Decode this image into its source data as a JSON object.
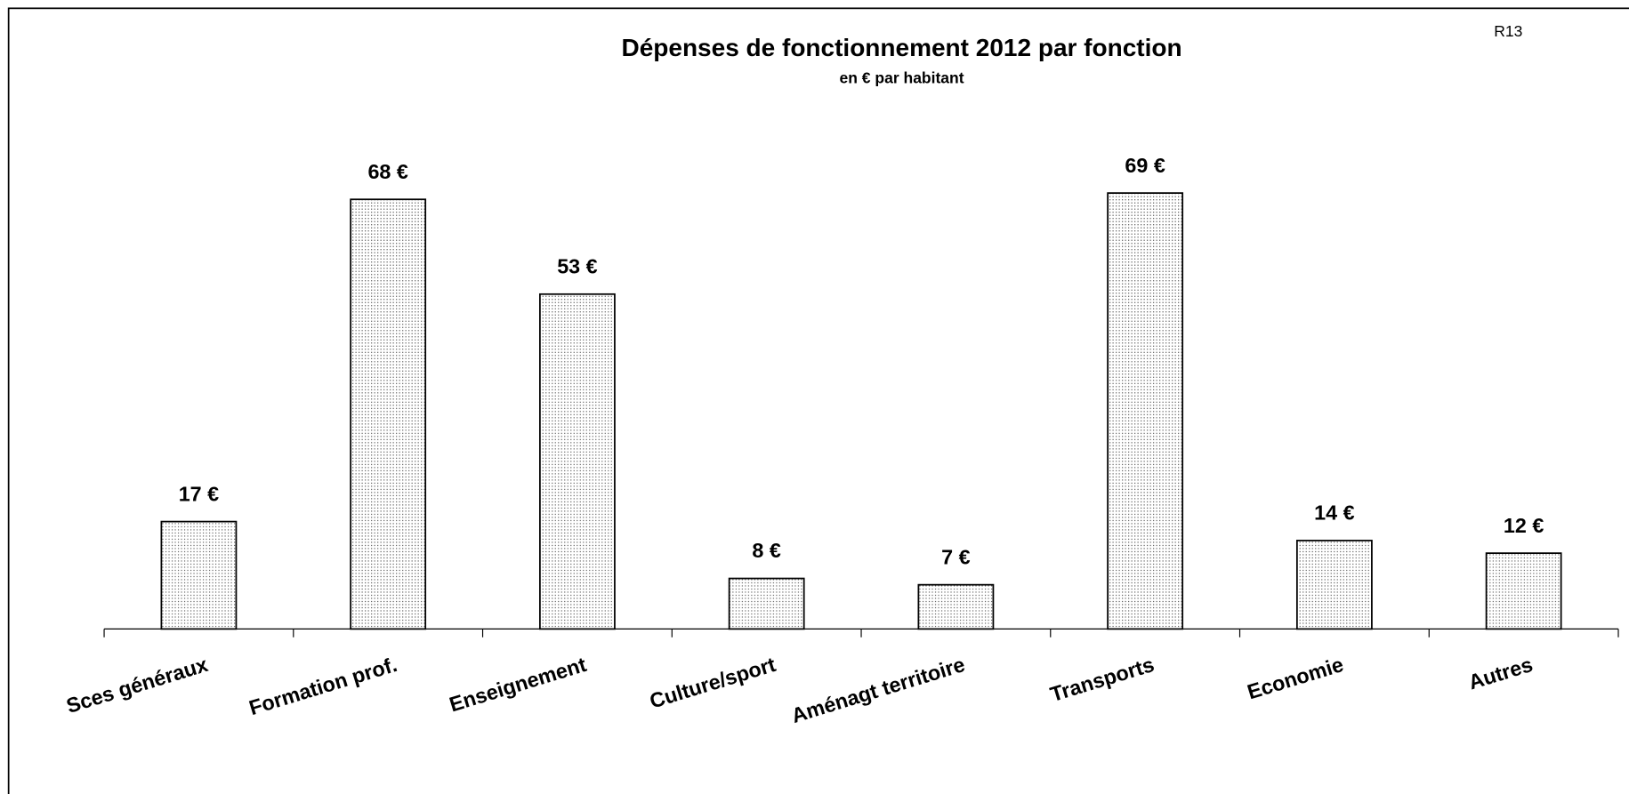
{
  "chart_data": {
    "type": "bar",
    "title": "Dépenses de fonctionnement 2012 par fonction",
    "subtitle": "en € par habitant",
    "annotation": "R13",
    "categories": [
      "Sces généraux",
      "Formation prof.",
      "Enseignement",
      "Culture/sport",
      "Aménagt territoire",
      "Transports",
      "Economie",
      "Autres"
    ],
    "values": [
      17,
      68,
      53,
      8,
      7,
      69,
      14,
      12
    ],
    "value_labels": [
      "17 €",
      "68 €",
      "53 €",
      "8 €",
      "7 €",
      "69 €",
      "14 €",
      "12 €"
    ],
    "color": "#ffffff"
  }
}
